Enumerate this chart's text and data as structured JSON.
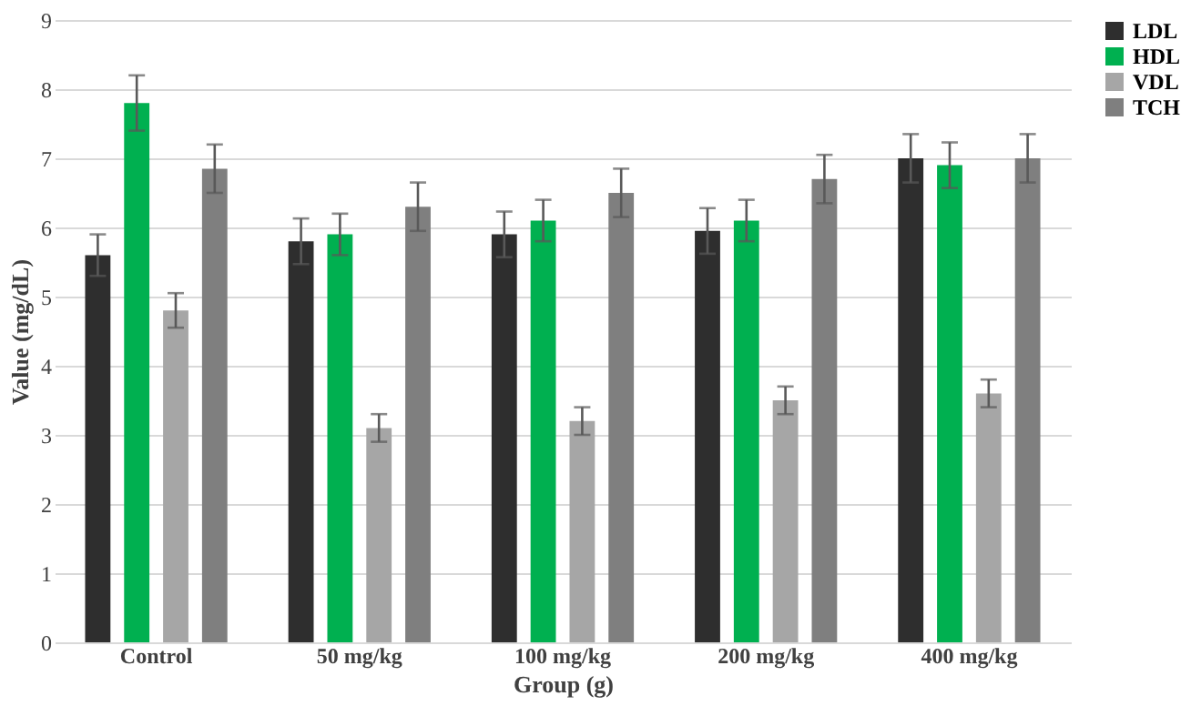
{
  "chart_data": {
    "type": "bar",
    "xlabel": "Group  (g)",
    "ylabel": "Value  (mg/dL)",
    "categories": [
      "Control",
      "50 mg/kg",
      "100 mg/kg",
      "200 mg/kg",
      "400 mg/kg"
    ],
    "series": [
      {
        "name": "LDL",
        "color": "#2e2e2e",
        "values": [
          5.6,
          5.8,
          5.9,
          5.95,
          7.0
        ],
        "errors": [
          0.3,
          0.33,
          0.33,
          0.33,
          0.35
        ]
      },
      {
        "name": "HDL",
        "color": "#00b050",
        "values": [
          7.8,
          5.9,
          6.1,
          6.1,
          6.9
        ],
        "errors": [
          0.4,
          0.3,
          0.3,
          0.3,
          0.33
        ]
      },
      {
        "name": "VDL",
        "color": "#a6a6a6",
        "values": [
          4.8,
          3.1,
          3.2,
          3.5,
          3.6
        ],
        "errors": [
          0.25,
          0.2,
          0.2,
          0.2,
          0.2
        ]
      },
      {
        "name": "TCH",
        "color": "#7f7f7f",
        "values": [
          6.85,
          6.3,
          6.5,
          6.7,
          7.0
        ],
        "errors": [
          0.35,
          0.35,
          0.35,
          0.35,
          0.35
        ]
      }
    ],
    "ylim": [
      0,
      9
    ],
    "yticks": [
      0,
      1,
      2,
      3,
      4,
      5,
      6,
      7,
      8,
      9
    ],
    "grid": "y",
    "legend": "right"
  }
}
